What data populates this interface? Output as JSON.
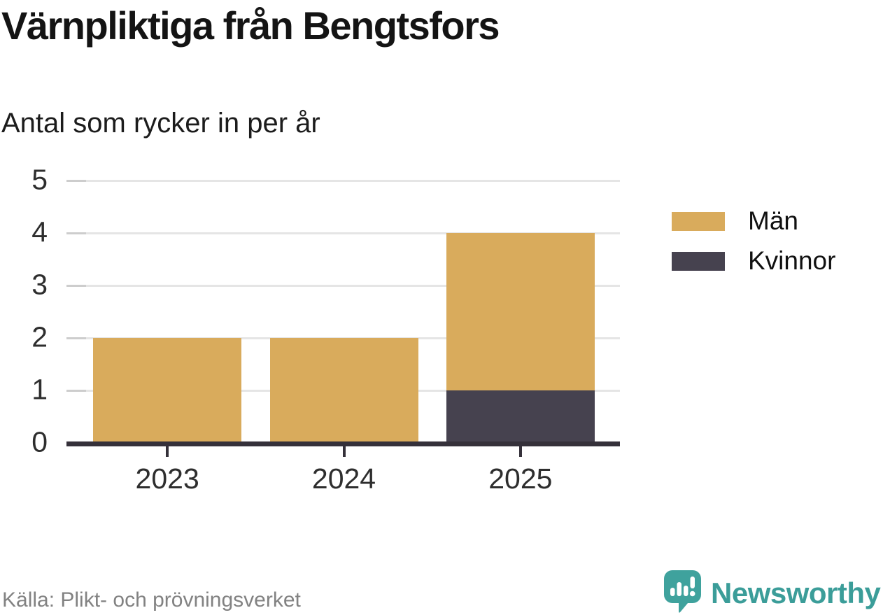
{
  "chart_data": {
    "type": "bar",
    "stacked": true,
    "title": "Värnpliktiga från Bengtsfors",
    "subtitle": "Antal som rycker in per år",
    "categories": [
      "2023",
      "2024",
      "2025"
    ],
    "series": [
      {
        "name": "Män",
        "color": "#d9ab5c",
        "values": [
          2,
          2,
          3
        ]
      },
      {
        "name": "Kvinnor",
        "color": "#46424f",
        "values": [
          0,
          0,
          1
        ]
      }
    ],
    "stack_totals": [
      2,
      2,
      4
    ],
    "ylim": [
      0,
      5
    ],
    "yticks": [
      0,
      1,
      2,
      3,
      4,
      5
    ],
    "grid": true,
    "legend_position": "right",
    "xlabel": "",
    "ylabel": ""
  },
  "source": {
    "label": "Källa: Plikt- och prövningsverket"
  },
  "brand": {
    "name": "Newsworthy"
  },
  "colors": {
    "men": "#d9ab5c",
    "women": "#46424f",
    "axis": "#35313a",
    "gridline": "#e5e5e5",
    "title_text": "#141414",
    "muted_text": "#828282",
    "brand_teal": "#3fa29d"
  }
}
